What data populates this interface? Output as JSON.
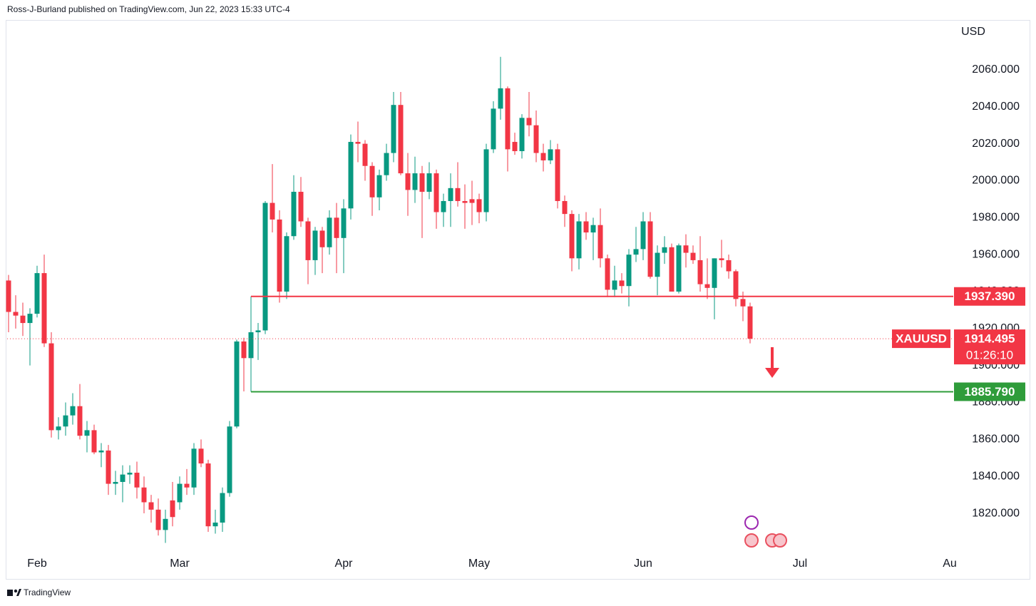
{
  "header": {
    "published": "Ross-J-Burland published on TradingView.com, Jun 22, 2023 15:33 UTC-4"
  },
  "footer": {
    "brand": "TradingView"
  },
  "chart_data": {
    "type": "candlestick",
    "symbol": "XAUUSD",
    "currency": "USD",
    "countdown": "01:26:10",
    "up_color": "#089981",
    "down_color": "#f23645",
    "grid": false,
    "xlim": [
      -0.2,
      132.5
    ],
    "xticks": [
      {
        "value": 4,
        "label": "Feb"
      },
      {
        "value": 24,
        "label": "Mar"
      },
      {
        "value": 47,
        "label": "Apr"
      },
      {
        "value": 66,
        "label": "May"
      },
      {
        "value": 89,
        "label": "Jun"
      },
      {
        "value": 111,
        "label": "Jul"
      },
      {
        "value": 132,
        "label": "Au"
      }
    ],
    "ylim": [
      1798.8,
      2094.7
    ],
    "yticks": [
      {
        "value": 1820,
        "label": "1820.000"
      },
      {
        "value": 1840,
        "label": "1840.000"
      },
      {
        "value": 1860,
        "label": "1860.000"
      },
      {
        "value": 1880,
        "label": "1880.000"
      },
      {
        "value": 1900,
        "label": "1900.000"
      },
      {
        "value": 1920,
        "label": "1920.000"
      },
      {
        "value": 1940,
        "label": "1940.000"
      },
      {
        "value": 1960,
        "label": "1960.000"
      },
      {
        "value": 1980,
        "label": "1980.000"
      },
      {
        "value": 2000,
        "label": "2000.000"
      },
      {
        "value": 2020,
        "label": "2020.000"
      },
      {
        "value": 2040,
        "label": "2040.000"
      },
      {
        "value": 2060,
        "label": "2060.000"
      }
    ],
    "levels": [
      {
        "value": 1937.39,
        "label": "1937.390",
        "color": "#f23645"
      },
      {
        "value": 1885.79,
        "label": "1885.790",
        "color": "#2e9c3a"
      }
    ],
    "open": [
      1946,
      1929,
      1927,
      1923,
      1928,
      1950,
      1912,
      1865,
      1867,
      1873,
      1878,
      1862,
      1865,
      1853,
      1854,
      1836,
      1837,
      1841,
      1842,
      1834,
      1826,
      1822,
      1811,
      1827,
      1826,
      1836,
      1834,
      1855,
      1847,
      1813,
      1815,
      1831,
      1867,
      1913,
      1904,
      1918,
      1919,
      1988,
      1979,
      1940,
      1970,
      1994,
      1978,
      1957,
      1973,
      1964,
      1980,
      1969,
      1985,
      2021,
      2020,
      2008,
      1991,
      2003,
      2015,
      2041,
      2004,
      1995,
      2004,
      1994,
      2004,
      1983,
      1989,
      1996,
      1989,
      1990,
      1990,
      1983,
      2017,
      2039,
      2050,
      2021,
      2016,
      2034,
      2030,
      2015,
      2011,
      2017,
      1989,
      1982,
      1958,
      1978,
      1972,
      1976,
      1958,
      1941,
      1946,
      1943,
      1960,
      1963,
      1978,
      1948,
      1961,
      1964,
      1940,
      1965,
      1961,
      1957,
      1944,
      1942,
      1958,
      1957,
      1951,
      1936,
      1932
    ],
    "high": [
      1949,
      1938,
      1934,
      1931,
      1954,
      1960,
      1918,
      1872,
      1880,
      1885,
      1890,
      1870,
      1868,
      1858,
      1857,
      1843,
      1846,
      1846,
      1848,
      1840,
      1830,
      1828,
      1822,
      1837,
      1840,
      1844,
      1858,
      1860,
      1849,
      1822,
      1834,
      1870,
      1914,
      1915,
      1937.39,
      1923,
      1989,
      2009,
      1984,
      1972,
      2003,
      2002,
      1980,
      1975,
      1975,
      1984,
      1988,
      1990,
      2025,
      2032,
      2022,
      2010,
      2006,
      2020,
      2048,
      2048,
      2015,
      2013,
      2008,
      2010,
      2006,
      1993,
      2004,
      2010,
      1998,
      2000,
      1993,
      2020,
      2043,
      2067,
      2051,
      2026,
      2036,
      2048,
      2038,
      2020,
      2022,
      2020,
      1992,
      1984,
      1982,
      1983,
      1980,
      1985,
      1960,
      1954,
      1950,
      1963,
      1975,
      1983,
      1983,
      1965,
      1970,
      1966,
      1966,
      1971,
      1965,
      1970,
      1958,
      1958,
      1968,
      1960,
      1952,
      1940,
      1934
    ],
    "low": [
      1918,
      1920,
      1916,
      1900,
      1926,
      1910,
      1861,
      1860,
      1862,
      1868,
      1860,
      1853,
      1852,
      1845,
      1830,
      1830,
      1826,
      1836,
      1828,
      1820,
      1815,
      1808,
      1804,
      1813,
      1822,
      1830,
      1830,
      1845,
      1810,
      1809,
      1810,
      1829,
      1866,
      1886,
      1885.79,
      1903,
      1917,
      1972,
      1934,
      1936,
      1968,
      1975,
      1944,
      1949,
      1950,
      1960,
      1950,
      1950,
      1979,
      2010,
      2000,
      1981,
      1984,
      2000,
      2010,
      2003,
      1981,
      1988,
      1969,
      1990,
      1974,
      1975,
      1975,
      1986,
      1974,
      1976,
      1977,
      1978,
      2015,
      2033,
      2005,
      2014,
      2012,
      2024,
      2010,
      2005,
      2009,
      1985,
      1975,
      1951,
      1952,
      1968,
      1957,
      1953,
      1937,
      1937,
      1939,
      1932,
      1956,
      1957,
      1947,
      1938,
      1955,
      1940,
      1939,
      1953,
      1955,
      1940,
      1936,
      1925,
      1953,
      1947,
      1932,
      1924,
      1912
    ],
    "close": [
      1929,
      1927,
      1923,
      1928,
      1950,
      1912,
      1865,
      1867,
      1873,
      1878,
      1862,
      1865,
      1853,
      1854,
      1836,
      1837,
      1841,
      1842,
      1834,
      1826,
      1822,
      1811,
      1817,
      1818,
      1836,
      1834,
      1855,
      1847,
      1813,
      1815,
      1831,
      1867,
      1913,
      1904,
      1918,
      1919,
      1988,
      1979,
      1940,
      1970,
      1994,
      1978,
      1957,
      1973,
      1964,
      1980,
      1969,
      1985,
      2021,
      2020,
      2008,
      1991,
      2003,
      2015,
      2041,
      2004,
      1995,
      2004,
      1994,
      2004,
      1983,
      1989,
      1996,
      1989,
      1988,
      1988,
      1983,
      2017,
      2039,
      2050,
      2017,
      2016,
      2034,
      2030,
      2015,
      2011,
      2017,
      1989,
      1982,
      1958,
      1978,
      1972,
      1976,
      1958,
      1941,
      1946,
      1943,
      1960,
      1963,
      1978,
      1948,
      1961,
      1964,
      1940,
      1965,
      1961,
      1957,
      1944,
      1942,
      1958,
      1957,
      1951,
      1936,
      1932,
      1914.495
    ]
  }
}
